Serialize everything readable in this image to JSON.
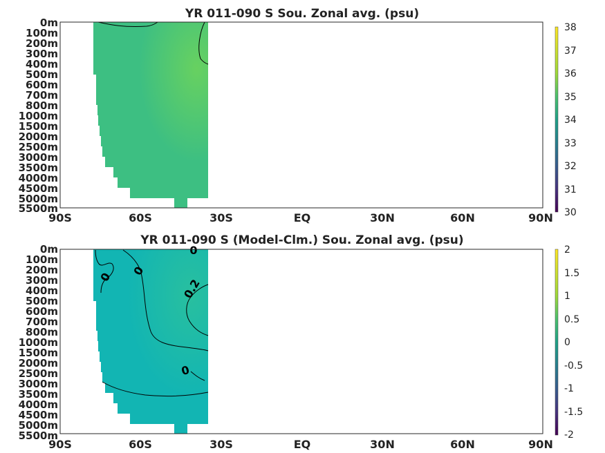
{
  "chart_data": [
    {
      "type": "heatmap",
      "title": "YR 011-090 S Sou. Zonal avg. (psu)",
      "x_ticks": [
        "90S",
        "60S",
        "30S",
        "EQ",
        "30N",
        "60N",
        "90N"
      ],
      "x_values": [
        -90,
        -60,
        -30,
        0,
        30,
        60,
        90
      ],
      "y_ticks": [
        "0m",
        "100m",
        "200m",
        "300m",
        "400m",
        "500m",
        "600m",
        "700m",
        "800m",
        "1000m",
        "1500m",
        "2000m",
        "2500m",
        "3000m",
        "3500m",
        "4000m",
        "4500m",
        "5000m",
        "5500m"
      ],
      "colorbar": {
        "ticks": [
          "38",
          "37",
          "36",
          "35",
          "34",
          "33",
          "32",
          "31",
          "30"
        ],
        "min": 30,
        "max": 38
      },
      "field": {
        "lat_range": [
          -77,
          -35
        ],
        "typical_value": 34.6,
        "max_value": 35.0
      },
      "contours": [
        {
          "label": "",
          "value": 34.6
        }
      ],
      "palette": "viridis"
    },
    {
      "type": "heatmap",
      "title": "YR 011-090 S (Model-Clm.) Sou. Zonal avg. (psu)",
      "x_ticks": [
        "90S",
        "60S",
        "30S",
        "EQ",
        "30N",
        "60N",
        "90N"
      ],
      "x_values": [
        -90,
        -60,
        -30,
        0,
        30,
        60,
        90
      ],
      "y_ticks": [
        "0m",
        "100m",
        "200m",
        "300m",
        "400m",
        "500m",
        "600m",
        "700m",
        "800m",
        "1000m",
        "1500m",
        "2000m",
        "2500m",
        "3000m",
        "3500m",
        "4000m",
        "4500m",
        "5000m",
        "5500m"
      ],
      "colorbar": {
        "ticks": [
          "2",
          "1.5",
          "1",
          "0.5",
          "0",
          "-0.5",
          "-1",
          "-1.5",
          "-2"
        ],
        "min": -2,
        "max": 2
      },
      "field": {
        "lat_range": [
          -77,
          -35
        ],
        "typical_value": 0.0,
        "max_value": 0.3
      },
      "contours": [
        {
          "label": "0",
          "value": 0
        },
        {
          "label": "0",
          "value": 0
        },
        {
          "label": "0",
          "value": 0
        },
        {
          "label": "0.2",
          "value": 0.2
        },
        {
          "label": "0",
          "value": 0
        }
      ],
      "palette": "viridis"
    }
  ]
}
